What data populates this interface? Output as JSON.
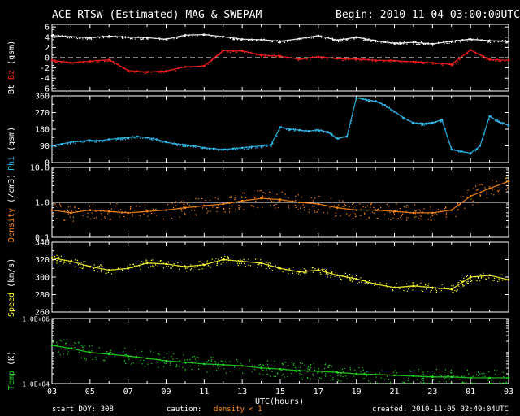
{
  "header": {
    "title": "ACE RTSW (Estimated) MAG & SWEPAM",
    "begin": "Begin: 2010-11-04 03:00:00UTC"
  },
  "footer": {
    "start_doy": "start DOY: 308",
    "caution_label": "caution:",
    "caution_value": "density < 1",
    "created": "created: 2010-11-05 02:49:04UTC"
  },
  "colors": {
    "bt": "#ffffff",
    "bz": "#ff2020",
    "phi": "#33bbee",
    "density": "#ff8c1a",
    "speed": "#ffff33",
    "temp": "#22dd22"
  },
  "x_axis": {
    "label": "UTC(hours)",
    "range_hours": [
      0,
      24
    ],
    "ticks": [
      "03",
      "05",
      "07",
      "09",
      "11",
      "13",
      "15",
      "17",
      "19",
      "21",
      "23",
      "01",
      "03"
    ]
  },
  "chart_data": [
    {
      "type": "scatter",
      "panel": "mag",
      "ylabel_parts": [
        {
          "text": "Bt",
          "color": "#ffffff"
        },
        {
          "text": "Bz",
          "color": "#ff2020"
        },
        {
          "text": "(gsm)",
          "color": "#ffffff"
        }
      ],
      "ylim": [
        -6.5,
        6.5
      ],
      "yticks": [
        "6",
        "4",
        "2",
        "0",
        "-2",
        "-4",
        "-6"
      ],
      "ytick_values": [
        6,
        4,
        2,
        0,
        -2,
        -4,
        -6
      ],
      "zero_line": true,
      "series": [
        {
          "name": "Bt",
          "color": "#ffffff",
          "x": [
            0,
            1,
            2,
            3,
            4,
            5,
            6,
            7,
            8,
            9,
            10,
            11,
            12,
            13,
            14,
            15,
            16,
            17,
            18,
            19,
            20,
            21,
            22,
            23,
            24
          ],
          "y": [
            4.3,
            4.1,
            3.9,
            4.2,
            4.0,
            3.9,
            3.6,
            4.4,
            4.5,
            4.1,
            3.6,
            3.5,
            3.2,
            3.7,
            4.3,
            3.4,
            4.0,
            3.3,
            2.8,
            3.0,
            2.7,
            3.2,
            3.6,
            3.3,
            3.2
          ]
        },
        {
          "name": "Bz",
          "color": "#ff2020",
          "x": [
            0,
            1,
            2,
            3,
            4,
            5,
            6,
            7,
            8,
            9,
            10,
            11,
            12,
            13,
            14,
            15,
            16,
            17,
            18,
            19,
            20,
            21,
            22,
            23,
            24
          ],
          "y": [
            -0.5,
            -1.0,
            -0.7,
            -0.4,
            -2.5,
            -2.8,
            -2.6,
            -1.8,
            -1.6,
            1.4,
            1.3,
            0.5,
            0.3,
            -0.3,
            0.2,
            -0.2,
            -0.3,
            -0.5,
            -0.6,
            -0.8,
            -1.0,
            -1.3,
            1.5,
            -0.4,
            -0.5
          ]
        }
      ]
    },
    {
      "type": "scatter",
      "panel": "phi",
      "ylabel_parts": [
        {
          "text": "Phi",
          "color": "#33bbee"
        },
        {
          "text": "(gsm)",
          "color": "#ffffff"
        }
      ],
      "ylim": [
        0,
        360
      ],
      "yticks": [
        "360",
        "270",
        "180",
        "90",
        "0"
      ],
      "ytick_values": [
        360,
        270,
        180,
        90,
        0
      ],
      "series": [
        {
          "name": "Phi",
          "color": "#33bbee",
          "x": [
            0,
            0.5,
            1,
            1.5,
            2,
            2.5,
            3,
            3.5,
            4,
            4.5,
            5,
            5.5,
            6,
            6.5,
            7,
            7.5,
            8,
            8.5,
            9,
            9.5,
            10,
            10.5,
            11,
            11.5,
            12,
            12.5,
            13,
            13.5,
            14,
            14.5,
            15,
            15.5,
            16,
            16.5,
            17,
            17.5,
            18,
            18.5,
            19,
            19.5,
            20,
            20.5,
            21,
            21.5,
            22,
            22.5,
            23,
            23.5,
            24
          ],
          "y": [
            90,
            100,
            110,
            115,
            120,
            118,
            125,
            130,
            135,
            140,
            135,
            125,
            110,
            100,
            95,
            90,
            80,
            75,
            70,
            75,
            80,
            85,
            90,
            95,
            190,
            180,
            175,
            170,
            175,
            165,
            130,
            140,
            350,
            340,
            330,
            310,
            275,
            240,
            215,
            210,
            215,
            230,
            70,
            60,
            50,
            90,
            250,
            220,
            200
          ]
        }
      ]
    },
    {
      "type": "scatter",
      "panel": "density",
      "ylabel_parts": [
        {
          "text": "Density",
          "color": "#ff8c1a"
        },
        {
          "text": "(/cm3)",
          "color": "#ffffff"
        }
      ],
      "scale": "log",
      "ylim": [
        0.1,
        10
      ],
      "yticks": [
        "10.0",
        "1.0",
        "0.1"
      ],
      "ytick_values": [
        10,
        1,
        0.1
      ],
      "ref_line": 1.0,
      "series": [
        {
          "name": "Density",
          "color": "#ff8c1a",
          "x": [
            0,
            1,
            2,
            3,
            4,
            5,
            6,
            7,
            8,
            9,
            10,
            11,
            12,
            13,
            14,
            15,
            16,
            17,
            18,
            19,
            20,
            21,
            22,
            23,
            24
          ],
          "y": [
            0.6,
            0.5,
            0.6,
            0.55,
            0.5,
            0.55,
            0.6,
            0.7,
            0.8,
            0.9,
            1.1,
            1.3,
            1.2,
            1.0,
            0.9,
            0.7,
            0.6,
            0.6,
            0.55,
            0.5,
            0.5,
            0.6,
            1.5,
            2.5,
            4.0
          ]
        }
      ]
    },
    {
      "type": "scatter",
      "panel": "speed",
      "ylabel_parts": [
        {
          "text": "Speed",
          "color": "#ffff33"
        },
        {
          "text": "(km/s)",
          "color": "#ffffff"
        }
      ],
      "ylim": [
        260,
        340
      ],
      "yticks": [
        "340",
        "320",
        "300",
        "280",
        "260"
      ],
      "ytick_values": [
        340,
        320,
        300,
        280,
        260
      ],
      "series": [
        {
          "name": "Speed",
          "color": "#ffff33",
          "x": [
            0,
            1,
            2,
            3,
            4,
            5,
            6,
            7,
            8,
            9,
            10,
            11,
            12,
            13,
            14,
            15,
            16,
            17,
            18,
            19,
            20,
            21,
            22,
            23,
            24
          ],
          "y": [
            322,
            318,
            312,
            308,
            310,
            316,
            315,
            312,
            314,
            320,
            318,
            316,
            310,
            306,
            308,
            302,
            298,
            292,
            288,
            290,
            288,
            286,
            300,
            302,
            297
          ]
        }
      ]
    },
    {
      "type": "scatter",
      "panel": "temp",
      "ylabel_parts": [
        {
          "text": "Temp",
          "color": "#22dd22"
        },
        {
          "text": "(K)",
          "color": "#ffffff"
        }
      ],
      "scale": "log",
      "ylim": [
        10000,
        1000000
      ],
      "yticks": [
        "1.0E+06",
        "1.0E+04"
      ],
      "ytick_values": [
        1000000,
        10000
      ],
      "series": [
        {
          "name": "Temp",
          "color": "#22dd22",
          "x": [
            0,
            1,
            2,
            3,
            4,
            5,
            6,
            7,
            8,
            9,
            10,
            11,
            12,
            13,
            14,
            15,
            16,
            17,
            18,
            19,
            20,
            21,
            22,
            23,
            24
          ],
          "y": [
            150000,
            120000,
            90000,
            80000,
            70000,
            60000,
            50000,
            45000,
            40000,
            38000,
            35000,
            30000,
            28000,
            25000,
            24000,
            22000,
            20000,
            19000,
            18000,
            17000,
            16000,
            16000,
            15000,
            15000,
            15000
          ]
        }
      ]
    }
  ]
}
